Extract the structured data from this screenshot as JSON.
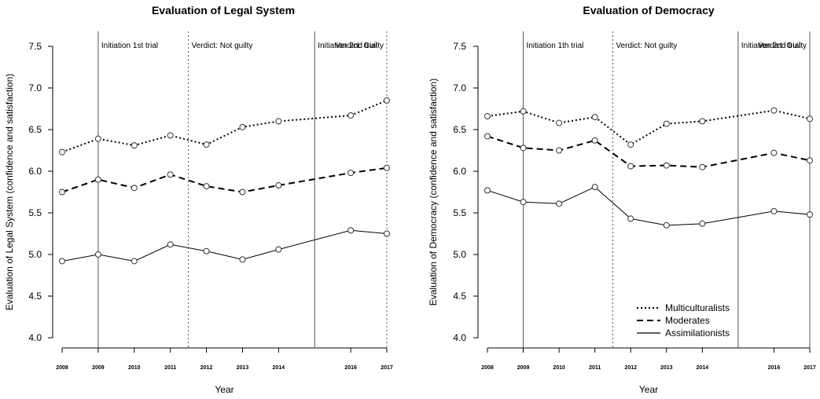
{
  "chart_data": [
    {
      "type": "line",
      "title": "Evaluation of Legal System",
      "xlabel": "Year",
      "ylabel": "Evaluation of Legal System (confidence and satisfaction)",
      "x": [
        2008,
        2009,
        2010,
        2011,
        2012,
        2013,
        2014,
        2016,
        2017
      ],
      "x_tick_labels": [
        "2008",
        "2009",
        "2010",
        "2011",
        "2012",
        "2013",
        "2014",
        "2016",
        "2017"
      ],
      "ylim": [
        4.0,
        7.5
      ],
      "y_ticks": [
        "4.0",
        "4.5",
        "5.0",
        "5.5",
        "6.0",
        "6.5",
        "7.0",
        "7.5"
      ],
      "grid": false,
      "series": [
        {
          "name": "Multiculturalists",
          "style": "dotted",
          "values": [
            6.23,
            6.39,
            6.31,
            6.43,
            6.32,
            6.53,
            6.6,
            6.67,
            6.85
          ]
        },
        {
          "name": "Moderates",
          "style": "dashed",
          "values": [
            5.75,
            5.9,
            5.8,
            5.96,
            5.82,
            5.75,
            5.83,
            5.98,
            6.04
          ]
        },
        {
          "name": "Assimilationists",
          "style": "solid",
          "values": [
            4.92,
            5.0,
            4.92,
            5.12,
            5.04,
            4.94,
            5.06,
            5.29,
            5.25
          ]
        }
      ],
      "events": [
        {
          "x": 2009.0,
          "style": "solid",
          "label": "Initiation 1st trial"
        },
        {
          "x": 2011.5,
          "style": "dotted",
          "label": "Verdict: Not guilty"
        },
        {
          "x": 2015.0,
          "style": "solid",
          "label": "Initiation 2nd trial"
        },
        {
          "x": 2017.0,
          "style": "dotted",
          "label": "Verdict: Guilty"
        }
      ]
    },
    {
      "type": "line",
      "title": "Evaluation of Democracy",
      "xlabel": "Year",
      "ylabel": "Evaluation of Democracy (confidence and satisfaction)",
      "x": [
        2008,
        2009,
        2010,
        2011,
        2012,
        2013,
        2014,
        2016,
        2017
      ],
      "x_tick_labels": [
        "2008",
        "2009",
        "2010",
        "2011",
        "2012",
        "2013",
        "2014",
        "2016",
        "2017"
      ],
      "ylim": [
        4.0,
        7.5
      ],
      "y_ticks": [
        "4.0",
        "4.5",
        "5.0",
        "5.5",
        "6.0",
        "6.5",
        "7.0",
        "7.5"
      ],
      "grid": false,
      "legend_position": "bottom-right",
      "series": [
        {
          "name": "Multiculturalists",
          "style": "dotted",
          "values": [
            6.66,
            6.72,
            6.58,
            6.65,
            6.32,
            6.57,
            6.6,
            6.73,
            6.63
          ]
        },
        {
          "name": "Moderates",
          "style": "dashed",
          "values": [
            6.42,
            6.28,
            6.25,
            6.37,
            6.06,
            6.07,
            6.05,
            6.22,
            6.13
          ]
        },
        {
          "name": "Assimilationists",
          "style": "solid",
          "values": [
            5.77,
            5.63,
            5.61,
            5.81,
            5.43,
            5.35,
            5.37,
            5.52,
            5.48
          ]
        }
      ],
      "events": [
        {
          "x": 2009.0,
          "style": "solid",
          "label": "Initiation 1th trial"
        },
        {
          "x": 2011.5,
          "style": "dotted",
          "label": "Verdict: Not guilty"
        },
        {
          "x": 2015.0,
          "style": "solid",
          "label": "Initiation 2nd trial"
        },
        {
          "x": 2017.0,
          "style": "solid",
          "label": "Verdict: Guilty"
        }
      ]
    }
  ]
}
